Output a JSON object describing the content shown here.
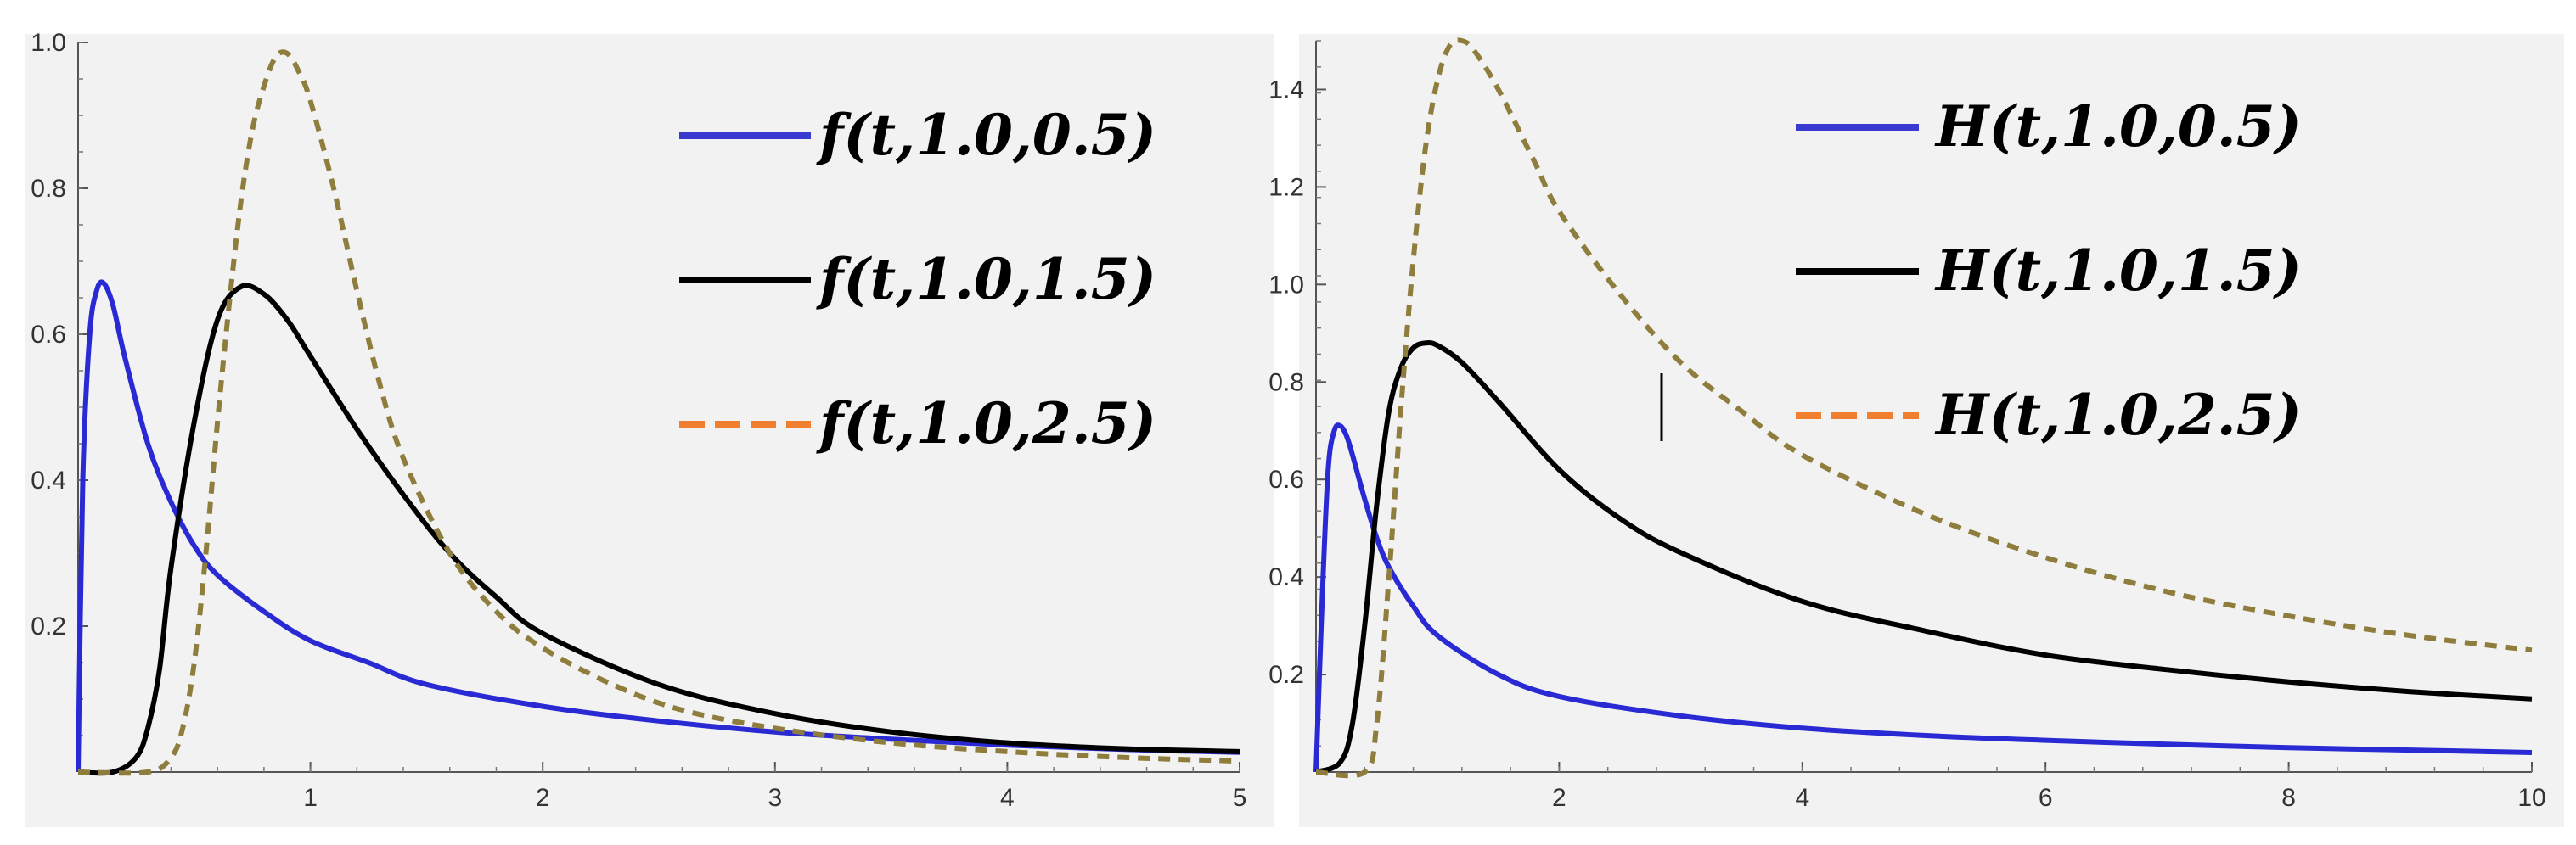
{
  "chart_data": [
    {
      "type": "line",
      "title": "",
      "xlabel": "",
      "ylabel": "",
      "xlim": [
        0,
        5
      ],
      "ylim": [
        0,
        1.0
      ],
      "x_ticks": [
        1,
        2,
        3,
        4,
        5
      ],
      "y_ticks": [
        0.2,
        0.4,
        0.6,
        0.8,
        1.0
      ],
      "x_tick_labels": [
        "1",
        "2",
        "3",
        "4",
        "5"
      ],
      "y_tick_labels": [
        "0.2",
        "0.4",
        "0.6",
        "0.8",
        "1.0"
      ],
      "grid": false,
      "legend_position": "top-right",
      "series": [
        {
          "name": "f(t,1.0,0.5)",
          "color": "#2a2ad4",
          "dash": "solid",
          "legend_color": "#3a3ad0",
          "x": [
            0,
            0.02,
            0.05,
            0.08,
            0.11,
            0.15,
            0.2,
            0.3,
            0.4,
            0.5,
            0.6,
            0.8,
            1.0,
            1.25,
            1.5,
            2.0,
            2.5,
            3.0,
            3.5,
            4.0,
            4.5,
            5.0
          ],
          "y": [
            0,
            0.4,
            0.6,
            0.66,
            0.67,
            0.64,
            0.57,
            0.45,
            0.37,
            0.31,
            0.27,
            0.22,
            0.18,
            0.15,
            0.12,
            0.09,
            0.07,
            0.055,
            0.045,
            0.037,
            0.031,
            0.027
          ]
        },
        {
          "name": "f(t,1.0,1.5)",
          "color": "#000000",
          "dash": "solid",
          "legend_color": "#000000",
          "x": [
            0,
            0.15,
            0.25,
            0.3,
            0.35,
            0.4,
            0.5,
            0.6,
            0.7,
            0.8,
            0.9,
            1.0,
            1.2,
            1.4,
            1.6,
            1.8,
            2.0,
            2.5,
            3.0,
            3.5,
            4.0,
            4.5,
            5.0
          ],
          "y": [
            0,
            0,
            0.02,
            0.06,
            0.14,
            0.28,
            0.48,
            0.62,
            0.665,
            0.655,
            0.62,
            0.57,
            0.47,
            0.38,
            0.3,
            0.24,
            0.19,
            0.12,
            0.08,
            0.055,
            0.04,
            0.032,
            0.028
          ]
        },
        {
          "name": "f(t,1.0,2.5)",
          "color": "#8e7d3c",
          "dash": "dashed",
          "legend_color": "#f08030",
          "x": [
            0,
            0.3,
            0.4,
            0.45,
            0.5,
            0.55,
            0.6,
            0.65,
            0.7,
            0.75,
            0.8,
            0.85,
            0.9,
            0.95,
            1.0,
            1.1,
            1.2,
            1.3,
            1.4,
            1.6,
            1.8,
            2.0,
            2.3,
            2.6,
            3.0,
            3.5,
            4.0,
            4.5,
            5.0
          ],
          "y": [
            0,
            0,
            0.02,
            0.06,
            0.15,
            0.3,
            0.48,
            0.64,
            0.78,
            0.88,
            0.94,
            0.98,
            0.985,
            0.96,
            0.92,
            0.8,
            0.66,
            0.53,
            0.43,
            0.3,
            0.22,
            0.17,
            0.12,
            0.085,
            0.06,
            0.04,
            0.028,
            0.02,
            0.015
          ]
        }
      ]
    },
    {
      "type": "line",
      "title": "",
      "xlabel": "",
      "ylabel": "",
      "xlim": [
        0,
        10
      ],
      "ylim": [
        0,
        1.5
      ],
      "x_ticks": [
        2,
        4,
        6,
        8,
        10
      ],
      "y_ticks": [
        0.2,
        0.4,
        0.6,
        0.8,
        1.0,
        1.2,
        1.4
      ],
      "x_tick_labels": [
        "2",
        "4",
        "6",
        "8",
        "10"
      ],
      "y_tick_labels": [
        "0.2",
        "0.4",
        "0.6",
        "0.8",
        "1.0",
        "1.2",
        "1.4"
      ],
      "grid": false,
      "legend_position": "top-right",
      "series": [
        {
          "name": "H(t,1.0,0.5)",
          "color": "#2a2ad4",
          "dash": "solid",
          "legend_color": "#3a3ad0",
          "x": [
            0,
            0.05,
            0.1,
            0.15,
            0.2,
            0.25,
            0.3,
            0.4,
            0.5,
            0.6,
            0.8,
            1.0,
            1.5,
            2.0,
            3.0,
            4.0,
            5.0,
            6.0,
            7.0,
            8.0,
            9.0,
            10.0
          ],
          "y": [
            0,
            0.35,
            0.62,
            0.7,
            0.71,
            0.69,
            0.65,
            0.56,
            0.48,
            0.42,
            0.34,
            0.28,
            0.2,
            0.155,
            0.115,
            0.09,
            0.075,
            0.065,
            0.057,
            0.05,
            0.045,
            0.04
          ]
        },
        {
          "name": "H(t,1.0,1.5)",
          "color": "#000000",
          "dash": "solid",
          "legend_color": "#000000",
          "x": [
            0,
            0.2,
            0.3,
            0.4,
            0.5,
            0.6,
            0.7,
            0.8,
            0.9,
            1.0,
            1.2,
            1.5,
            2.0,
            2.5,
            3.0,
            4.0,
            5.0,
            6.0,
            7.0,
            8.0,
            9.0,
            10.0
          ],
          "y": [
            0,
            0.02,
            0.1,
            0.3,
            0.55,
            0.74,
            0.83,
            0.87,
            0.88,
            0.875,
            0.84,
            0.76,
            0.62,
            0.52,
            0.45,
            0.35,
            0.29,
            0.24,
            0.21,
            0.185,
            0.165,
            0.15
          ]
        },
        {
          "name": "H(t,1.0,2.5)",
          "color": "#8e7d3c",
          "dash": "dashed",
          "legend_color": "#f08030",
          "x": [
            0,
            0.4,
            0.5,
            0.6,
            0.7,
            0.8,
            0.9,
            1.0,
            1.1,
            1.2,
            1.3,
            1.5,
            1.8,
            2.0,
            2.5,
            3.0,
            3.5,
            4.0,
            5.0,
            6.0,
            7.0,
            8.0,
            9.0,
            10.0
          ],
          "y": [
            0,
            0,
            0.1,
            0.4,
            0.75,
            1.05,
            1.28,
            1.42,
            1.49,
            1.5,
            1.48,
            1.4,
            1.25,
            1.15,
            0.98,
            0.84,
            0.74,
            0.65,
            0.53,
            0.44,
            0.37,
            0.32,
            0.28,
            0.25
          ]
        }
      ]
    }
  ]
}
